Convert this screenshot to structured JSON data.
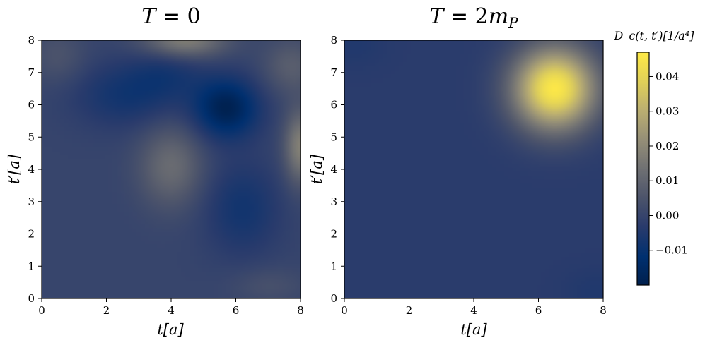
{
  "chart_data": [
    {
      "type": "heatmap",
      "title": "T = 0",
      "xlabel": "t[a]",
      "ylabel": "t′[a]",
      "xlim": [
        0,
        8
      ],
      "ylim": [
        0,
        8
      ],
      "x_ticks": [
        "0",
        "2",
        "4",
        "6",
        "8"
      ],
      "y_ticks": [
        "0",
        "1",
        "2",
        "3",
        "4",
        "5",
        "6",
        "7",
        "8"
      ],
      "colormap": "cividis",
      "baseline": 0.0,
      "features": [
        {
          "kind": "minimum",
          "t": 5.7,
          "t_prime": 5.9,
          "value": -0.019,
          "sx": 0.7,
          "sy": 0.65
        },
        {
          "kind": "minimum",
          "t": 2.6,
          "t_prime": 6.3,
          "value": -0.008,
          "sx": 1.1,
          "sy": 0.7
        },
        {
          "kind": "minimum",
          "t": 6.2,
          "t_prime": 2.8,
          "value": -0.008,
          "sx": 0.8,
          "sy": 1.0
        },
        {
          "kind": "minimum",
          "t": 3.9,
          "t_prime": 7.0,
          "value": -0.006,
          "sx": 0.8,
          "sy": 0.6
        },
        {
          "kind": "maximum",
          "t": 4.0,
          "t_prime": 4.1,
          "value": 0.012,
          "sx": 0.7,
          "sy": 0.9
        },
        {
          "kind": "maximum",
          "t": 4.4,
          "t_prime": 8.0,
          "value": 0.018,
          "sx": 0.9,
          "sy": 0.4
        },
        {
          "kind": "maximum",
          "t": 8.0,
          "t_prime": 4.7,
          "value": 0.018,
          "sx": 0.35,
          "sy": 0.8
        },
        {
          "kind": "maximum",
          "t": 7.7,
          "t_prime": 7.2,
          "value": 0.008,
          "sx": 0.6,
          "sy": 0.6
        },
        {
          "kind": "maximum",
          "t": 0.5,
          "t_prime": 7.5,
          "value": 0.005,
          "sx": 0.6,
          "sy": 0.6
        },
        {
          "kind": "maximum",
          "t": 7.0,
          "t_prime": 0.4,
          "value": 0.004,
          "sx": 0.8,
          "sy": 0.4
        }
      ]
    },
    {
      "type": "heatmap",
      "title": "T = 2m_P",
      "xlabel": "t[a]",
      "ylabel": "t′[a]",
      "xlim": [
        0,
        8
      ],
      "ylim": [
        0,
        8
      ],
      "x_ticks": [
        "0",
        "2",
        "4",
        "6",
        "8"
      ],
      "y_ticks": [
        "0",
        "1",
        "2",
        "3",
        "4",
        "5",
        "6",
        "7",
        "8"
      ],
      "colormap": "cividis",
      "baseline": -0.003,
      "features": [
        {
          "kind": "maximum",
          "t": 6.5,
          "t_prime": 6.5,
          "value": 0.049,
          "sx": 0.9,
          "sy": 0.9
        },
        {
          "kind": "minimum",
          "t": 0.2,
          "t_prime": 7.9,
          "value": -0.002,
          "sx": 0.7,
          "sy": 0.5
        },
        {
          "kind": "minimum",
          "t": 7.8,
          "t_prime": 0.2,
          "value": -0.002,
          "sx": 0.7,
          "sy": 0.5
        }
      ]
    },
    {
      "type": "colorbar",
      "title": "D_c(t, t′)[1/a⁴]",
      "range": [
        -0.02,
        0.047
      ],
      "ticks": [
        {
          "value": 0.04,
          "label": "0.04"
        },
        {
          "value": 0.03,
          "label": "0.03"
        },
        {
          "value": 0.02,
          "label": "0.02"
        },
        {
          "value": 0.01,
          "label": "0.01"
        },
        {
          "value": 0.0,
          "label": "0.00"
        },
        {
          "value": -0.01,
          "label": "−0.01"
        }
      ]
    }
  ]
}
